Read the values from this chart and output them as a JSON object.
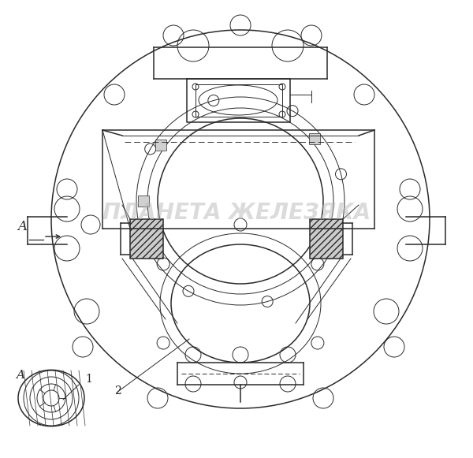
{
  "bg_color": "#ffffff",
  "line_color": "#2a2a2a",
  "watermark_text": "ПЛАНЕТА ЖЕЛЕЗЯКА",
  "watermark_color": "#b8b8b8",
  "watermark_alpha": 0.5,
  "figsize": [
    6.0,
    5.81
  ],
  "dpi": 100
}
